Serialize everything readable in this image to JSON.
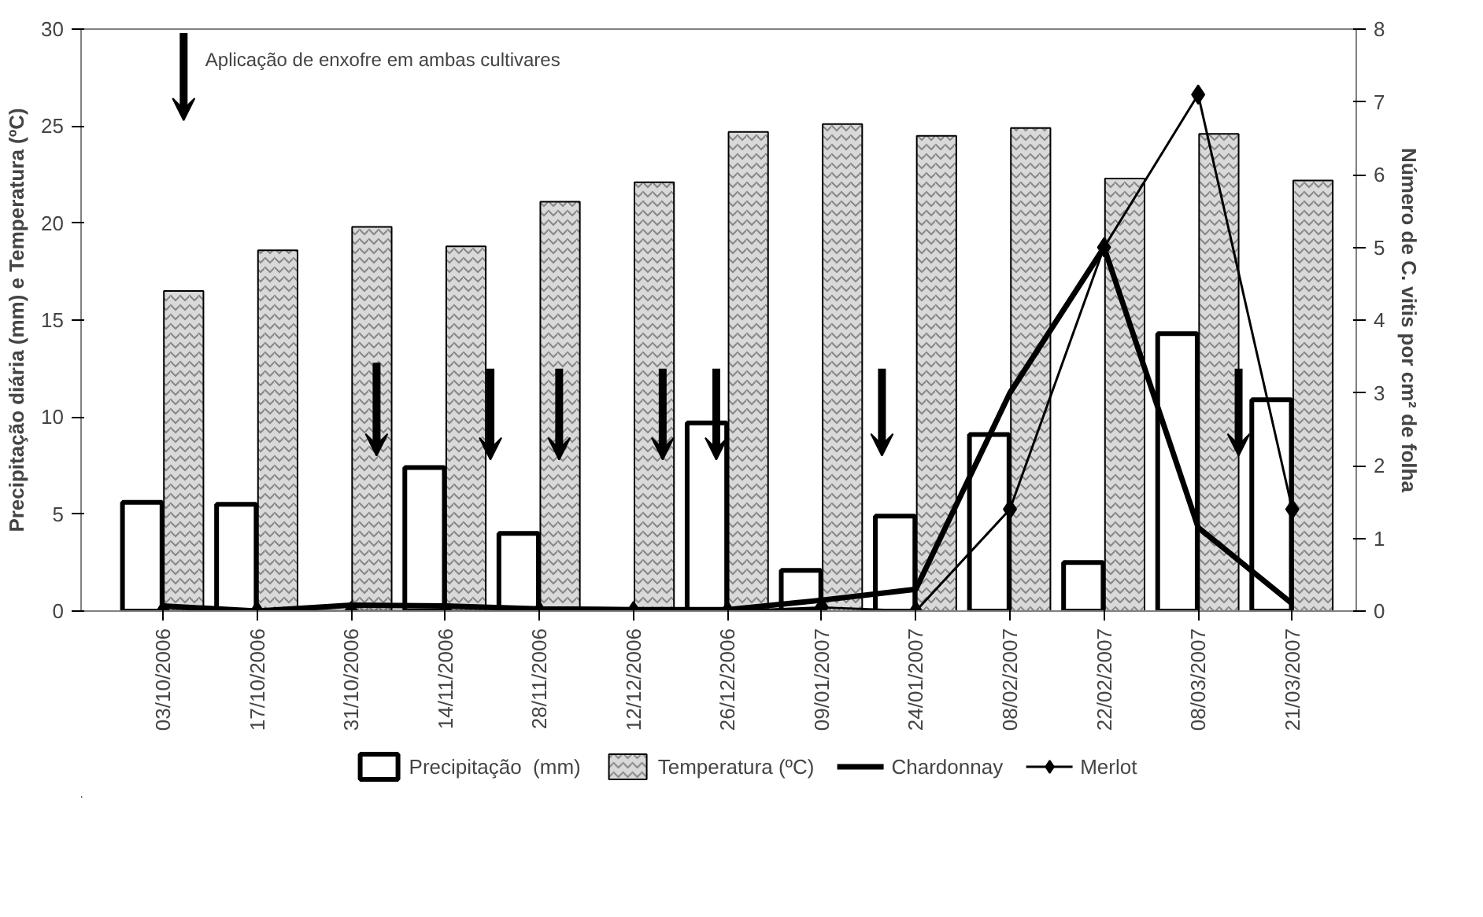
{
  "chart_data": {
    "type": "bar",
    "xlabel": null,
    "ylabel": "Precipitação diária (mm) e Temperatura (ºC)",
    "y2label": "Número de C. vitis por cm² de folha",
    "categories": [
      "03/10/2006",
      "17/10/2006",
      "31/10/2006",
      "14/11/2006",
      "28/11/2006",
      "12/12/2006",
      "26/12/2006",
      "09/01/2007",
      "24/01/2007",
      "08/02/2007",
      "22/02/2007",
      "08/03/2007",
      "21/03/2007"
    ],
    "series": [
      {
        "name": "Precipitação  (mm)",
        "color": "#ffffff",
        "values": [
          5.6,
          5.5,
          null,
          7.4,
          4.0,
          0,
          9.7,
          2.1,
          4.9,
          9.1,
          2.5,
          14.3,
          10.9
        ]
      },
      {
        "name": "Temperatura (ºC)",
        "color": "#d9d9d9",
        "values": [
          16.5,
          18.6,
          19.8,
          18.8,
          21.1,
          22.1,
          24.7,
          25.1,
          24.5,
          24.9,
          22.3,
          24.6,
          22.2
        ]
      },
      {
        "name": "Chardonnay",
        "type": "line",
        "axis": "y2",
        "color": "#000000",
        "marker": "none",
        "values": [
          0.07,
          0,
          0.08,
          0.07,
          0.03,
          0.02,
          0.02,
          0.15,
          0.3,
          3.0,
          5.0,
          1.15,
          0.1
        ]
      },
      {
        "name": "Merlot",
        "type": "line",
        "axis": "y2",
        "color": "#000000",
        "marker": "diamond",
        "values": [
          0,
          0,
          0,
          0,
          0,
          0,
          0,
          0.05,
          0,
          1.4,
          5.0,
          7.1,
          1.4
        ]
      }
    ],
    "ylim": [
      0,
      30
    ],
    "yticks": [
      0,
      5,
      10,
      15,
      20,
      25,
      30
    ],
    "y2lim": [
      0,
      8
    ],
    "y2ticks": [
      0,
      1,
      2,
      3,
      4,
      5,
      6,
      7,
      8
    ],
    "annotations": [
      "Aplicação de enxofre em ambas cultivares"
    ],
    "grid": false,
    "legend": "bottom"
  }
}
